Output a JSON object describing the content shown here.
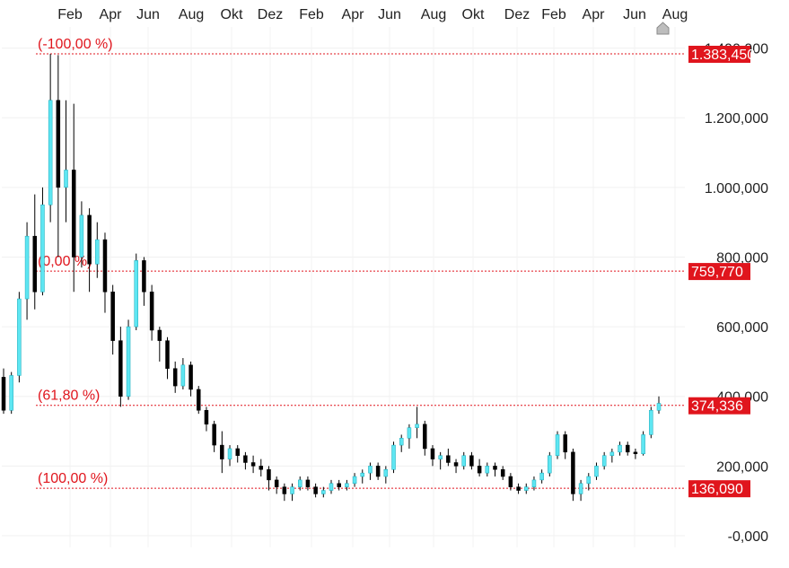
{
  "chart_data": {
    "type": "candlestick",
    "title": "",
    "xlabel": "",
    "ylabel": "",
    "ylim": [
      0,
      1450000
    ],
    "grid": true,
    "colors": {
      "up": "#5ee6f2",
      "down": "#000000",
      "fib": "#e0151d",
      "label_bg": "#e0151d",
      "label_text": "#ffffff",
      "tick_text": "#222222"
    },
    "x_ticks": [
      "Feb",
      "Apr",
      "Jun",
      "Aug",
      "Okt",
      "Dez",
      "Feb",
      "Apr",
      "Jun",
      "Aug",
      "Okt",
      "Dez",
      "Feb",
      "Apr",
      "Jun",
      "Aug"
    ],
    "y_ticks": [
      {
        "value": 0,
        "label": "-0,000"
      },
      {
        "value": 200000,
        "label": "200,000"
      },
      {
        "value": 400000,
        "label": "400,000"
      },
      {
        "value": 600000,
        "label": "600,000"
      },
      {
        "value": 800000,
        "label": "800,000"
      },
      {
        "value": 1000000,
        "label": "1.000,000"
      },
      {
        "value": 1200000,
        "label": "1.200,000"
      },
      {
        "value": 1400000,
        "label": "1.400,000"
      }
    ],
    "fib_levels": [
      {
        "pct": "(-100,00 %)",
        "value": 1383450,
        "value_label": "1.383,450"
      },
      {
        "pct": "(0,00 %)",
        "value": 759770,
        "value_label": "759,770"
      },
      {
        "pct": "(61,80 %)",
        "value": 374336,
        "value_label": "374,336"
      },
      {
        "pct": "(100,00 %)",
        "value": 136090,
        "value_label": "136,090"
      }
    ],
    "candles": [
      [
        455000,
        480000,
        350000,
        360000
      ],
      [
        360000,
        470000,
        350000,
        460000
      ],
      [
        460000,
        700000,
        440000,
        680000
      ],
      [
        680000,
        900000,
        620000,
        860000
      ],
      [
        860000,
        980000,
        650000,
        700000
      ],
      [
        700000,
        1000000,
        690000,
        950000
      ],
      [
        950000,
        1383450,
        900000,
        1250000
      ],
      [
        1250000,
        1380000,
        800000,
        1000000
      ],
      [
        1000000,
        1250000,
        900000,
        1050000
      ],
      [
        1050000,
        1240000,
        700000,
        800000
      ],
      [
        800000,
        960000,
        770000,
        920000
      ],
      [
        920000,
        940000,
        700000,
        780000
      ],
      [
        780000,
        900000,
        740000,
        850000
      ],
      [
        850000,
        870000,
        640000,
        700000
      ],
      [
        700000,
        720000,
        520000,
        560000
      ],
      [
        560000,
        600000,
        370000,
        400000
      ],
      [
        400000,
        620000,
        390000,
        600000
      ],
      [
        600000,
        810000,
        590000,
        790000
      ],
      [
        790000,
        800000,
        660000,
        700000
      ],
      [
        700000,
        720000,
        560000,
        590000
      ],
      [
        590000,
        600000,
        500000,
        560000
      ],
      [
        560000,
        570000,
        450000,
        480000
      ],
      [
        480000,
        500000,
        410000,
        430000
      ],
      [
        430000,
        510000,
        420000,
        490000
      ],
      [
        490000,
        500000,
        400000,
        420000
      ],
      [
        420000,
        430000,
        350000,
        360000
      ],
      [
        360000,
        370000,
        300000,
        320000
      ],
      [
        320000,
        330000,
        240000,
        260000
      ],
      [
        260000,
        300000,
        180000,
        220000
      ],
      [
        220000,
        260000,
        200000,
        250000
      ],
      [
        250000,
        260000,
        210000,
        230000
      ],
      [
        230000,
        240000,
        190000,
        210000
      ],
      [
        210000,
        230000,
        180000,
        200000
      ],
      [
        200000,
        220000,
        170000,
        190000
      ],
      [
        190000,
        200000,
        130000,
        160000
      ],
      [
        160000,
        170000,
        120000,
        140000
      ],
      [
        140000,
        150000,
        100000,
        120000
      ],
      [
        120000,
        150000,
        100000,
        140000
      ],
      [
        140000,
        170000,
        130000,
        160000
      ],
      [
        160000,
        170000,
        130000,
        140000
      ],
      [
        140000,
        150000,
        110000,
        120000
      ],
      [
        120000,
        140000,
        110000,
        130000
      ],
      [
        130000,
        160000,
        120000,
        150000
      ],
      [
        150000,
        160000,
        130000,
        140000
      ],
      [
        140000,
        160000,
        130000,
        150000
      ],
      [
        150000,
        180000,
        140000,
        170000
      ],
      [
        170000,
        190000,
        150000,
        180000
      ],
      [
        180000,
        210000,
        160000,
        200000
      ],
      [
        200000,
        210000,
        160000,
        170000
      ],
      [
        170000,
        200000,
        150000,
        190000
      ],
      [
        190000,
        270000,
        180000,
        260000
      ],
      [
        260000,
        290000,
        240000,
        280000
      ],
      [
        280000,
        320000,
        250000,
        310000
      ],
      [
        310000,
        370000,
        280000,
        320000
      ],
      [
        320000,
        330000,
        230000,
        250000
      ],
      [
        250000,
        260000,
        200000,
        220000
      ],
      [
        220000,
        240000,
        190000,
        230000
      ],
      [
        230000,
        250000,
        200000,
        210000
      ],
      [
        210000,
        220000,
        180000,
        200000
      ],
      [
        200000,
        240000,
        190000,
        230000
      ],
      [
        230000,
        240000,
        190000,
        200000
      ],
      [
        200000,
        220000,
        170000,
        180000
      ],
      [
        180000,
        210000,
        170000,
        200000
      ],
      [
        200000,
        210000,
        170000,
        190000
      ],
      [
        190000,
        200000,
        160000,
        170000
      ],
      [
        170000,
        180000,
        130000,
        140000
      ],
      [
        140000,
        150000,
        120000,
        130000
      ],
      [
        130000,
        150000,
        120000,
        140000
      ],
      [
        140000,
        170000,
        130000,
        160000
      ],
      [
        160000,
        190000,
        150000,
        180000
      ],
      [
        180000,
        240000,
        170000,
        230000
      ],
      [
        230000,
        300000,
        220000,
        290000
      ],
      [
        290000,
        300000,
        220000,
        240000
      ],
      [
        240000,
        250000,
        100000,
        120000
      ],
      [
        120000,
        160000,
        100000,
        150000
      ],
      [
        150000,
        180000,
        130000,
        170000
      ],
      [
        170000,
        210000,
        160000,
        200000
      ],
      [
        200000,
        240000,
        190000,
        230000
      ],
      [
        230000,
        250000,
        210000,
        240000
      ],
      [
        240000,
        270000,
        230000,
        260000
      ],
      [
        260000,
        270000,
        230000,
        240000
      ],
      [
        240000,
        250000,
        220000,
        235000
      ],
      [
        235000,
        300000,
        230000,
        290000
      ],
      [
        290000,
        370000,
        280000,
        360000
      ],
      [
        360000,
        400000,
        350000,
        380000
      ]
    ]
  }
}
